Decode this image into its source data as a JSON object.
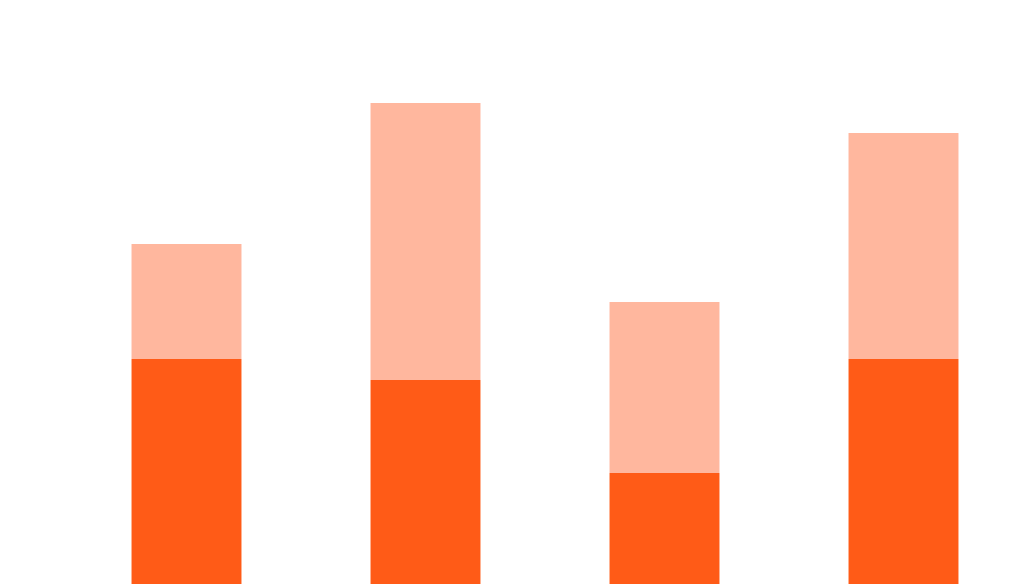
{
  "chart_data": {
    "type": "bar",
    "stacked": true,
    "categories": [
      null,
      null,
      null,
      null
    ],
    "series": [
      {
        "color": "#ff5b17",
        "values": [
          225,
          204,
          111,
          225
        ]
      },
      {
        "color": "#ffb79e",
        "values": [
          115,
          277,
          171,
          226
        ]
      }
    ],
    "ylim": [
      0,
      584
    ]
  }
}
